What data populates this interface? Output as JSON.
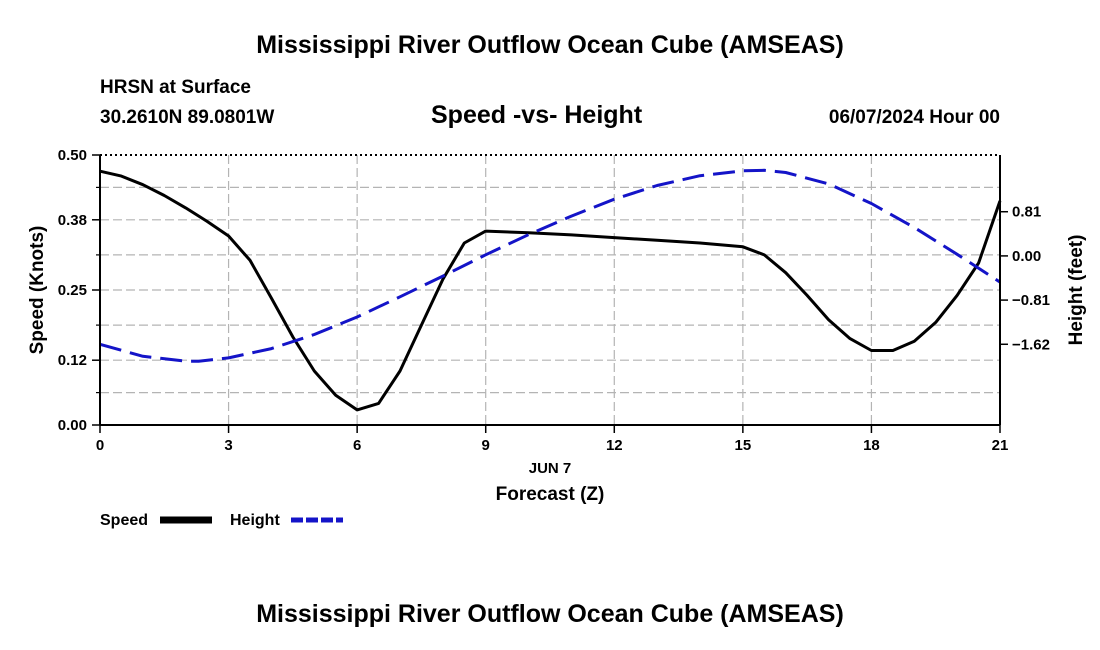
{
  "header": {
    "title": "Mississippi River Outflow Ocean Cube (AMSEAS)",
    "station": "HRSN at Surface",
    "coords": "30.2610N  89.0801W",
    "datetime": "06/07/2024 Hour 00",
    "footer_title": "Mississippi River Outflow Ocean Cube (AMSEAS)"
  },
  "chart_data": {
    "type": "line",
    "title": "Speed -vs- Height",
    "xlabel": "Forecast (Z)",
    "xlabel_date": "JUN 7",
    "ylabel": "Speed (Knots)",
    "y2label": "Height (feet)",
    "xlim": [
      0,
      21
    ],
    "ylim": [
      0,
      0.5
    ],
    "y2lim": [
      -3.1,
      1.85
    ],
    "grid": true,
    "x_ticks": [
      0,
      3,
      6,
      9,
      12,
      15,
      18,
      21
    ],
    "y_ticks": [
      "0.00",
      "0.12",
      "0.25",
      "0.38",
      "0.50"
    ],
    "y2_ticks": [
      "0.81",
      "0.00",
      "−0.81",
      "−1.62"
    ],
    "y2_tick_values": [
      0.81,
      0,
      -0.81,
      -1.62
    ],
    "series": [
      {
        "name": "Speed",
        "axis": "left",
        "color": "#000000",
        "style": "solid",
        "x": [
          0,
          0.5,
          1,
          1.5,
          2,
          2.5,
          3,
          3.5,
          4,
          4.5,
          5,
          5.5,
          6,
          6.5,
          7,
          7.5,
          8,
          8.5,
          9,
          10,
          11,
          12,
          13,
          14,
          15,
          15.5,
          16,
          16.5,
          17,
          17.5,
          18,
          18.5,
          19,
          19.5,
          20,
          20.5,
          21
        ],
        "values": [
          0.47,
          0.461,
          0.445,
          0.425,
          0.402,
          0.377,
          0.35,
          0.305,
          0.235,
          0.163,
          0.1,
          0.055,
          0.028,
          0.04,
          0.1,
          0.185,
          0.27,
          0.337,
          0.359,
          0.356,
          0.352,
          0.347,
          0.342,
          0.337,
          0.33,
          0.315,
          0.282,
          0.24,
          0.195,
          0.16,
          0.138,
          0.138,
          0.155,
          0.19,
          0.24,
          0.3,
          0.415
        ]
      },
      {
        "name": "Height",
        "axis": "right",
        "color": "#1414c8",
        "style": "dashed",
        "x": [
          0,
          1,
          2,
          2.3,
          3,
          4,
          5,
          6,
          7,
          8,
          9,
          10,
          11,
          12,
          13,
          14,
          15,
          15.5,
          16,
          17,
          18,
          19,
          20,
          21
        ],
        "values": [
          -1.62,
          -1.84,
          -1.93,
          -1.93,
          -1.87,
          -1.7,
          -1.44,
          -1.12,
          -0.75,
          -0.37,
          0.02,
          0.39,
          0.73,
          1.04,
          1.29,
          1.47,
          1.56,
          1.57,
          1.53,
          1.32,
          0.96,
          0.52,
          0.03,
          -0.48
        ]
      }
    ],
    "legend": [
      {
        "label": "Speed",
        "color": "#000000",
        "style": "solid"
      },
      {
        "label": "Height",
        "color": "#1414c8",
        "style": "dashed"
      }
    ]
  }
}
